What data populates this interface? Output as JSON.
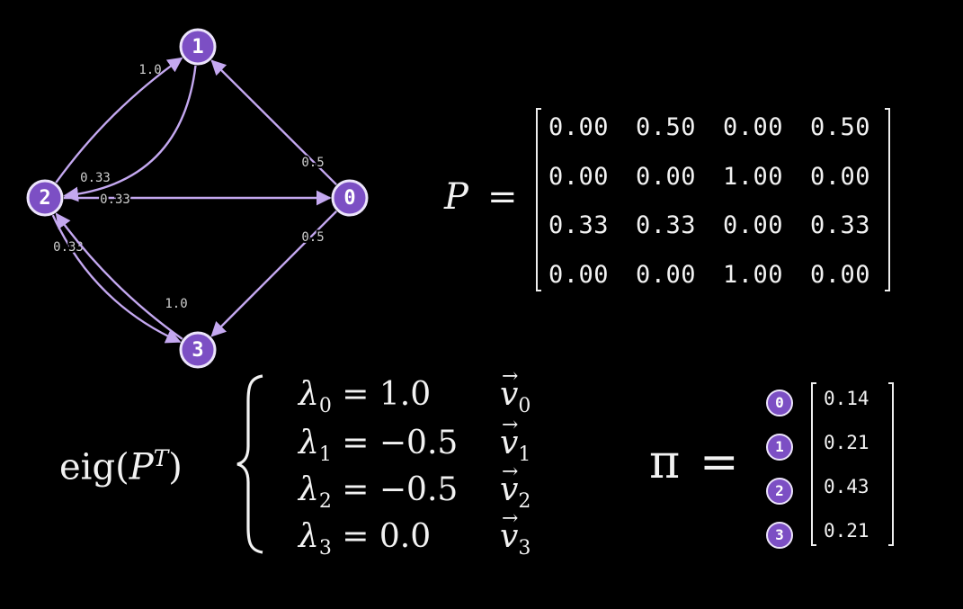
{
  "graph": {
    "nodes": [
      {
        "id": "0",
        "label": "0"
      },
      {
        "id": "1",
        "label": "1"
      },
      {
        "id": "2",
        "label": "2"
      },
      {
        "id": "3",
        "label": "3"
      }
    ],
    "edges": [
      {
        "from": "0",
        "to": "1",
        "weight": "0.5"
      },
      {
        "from": "0",
        "to": "3",
        "weight": "0.5"
      },
      {
        "from": "1",
        "to": "2",
        "weight": "1.0"
      },
      {
        "from": "2",
        "to": "1",
        "weight": "0.33"
      },
      {
        "from": "2",
        "to": "0",
        "weight": "0.33"
      },
      {
        "from": "2",
        "to": "3",
        "weight": "0.33"
      },
      {
        "from": "3",
        "to": "2",
        "weight": "1.0"
      }
    ],
    "colors": {
      "node_fill": "#7c4fc4",
      "node_border": "#ece4fb",
      "edge": "#c4a8f0",
      "label": "#cfcfcf"
    }
  },
  "transition_matrix": {
    "symbol": "P",
    "equals": "=",
    "rows": [
      [
        "0.00",
        "0.50",
        "0.00",
        "0.50"
      ],
      [
        "0.00",
        "0.00",
        "1.00",
        "0.00"
      ],
      [
        "0.33",
        "0.33",
        "0.00",
        "0.33"
      ],
      [
        "0.00",
        "0.00",
        "1.00",
        "0.00"
      ]
    ]
  },
  "eigen": {
    "func": "eig(",
    "arg": "P",
    "sup": "T",
    "close": ")",
    "rows": [
      {
        "lam": "λ",
        "sub": "0",
        "eq": " = 1.0",
        "vec": "v",
        "vsub": "0"
      },
      {
        "lam": "λ",
        "sub": "1",
        "eq": " = −0.5",
        "vec": "v",
        "vsub": "1"
      },
      {
        "lam": "λ",
        "sub": "2",
        "eq": " = −0.5",
        "vec": "v",
        "vsub": "2"
      },
      {
        "lam": "λ",
        "sub": "3",
        "eq": " = 0.0",
        "vec": "v",
        "vsub": "3"
      }
    ]
  },
  "stationary": {
    "symbol": "π",
    "equals": "=",
    "entries": [
      {
        "node": "0",
        "value": "0.14"
      },
      {
        "node": "1",
        "value": "0.21"
      },
      {
        "node": "2",
        "value": "0.43"
      },
      {
        "node": "3",
        "value": "0.21"
      }
    ]
  }
}
